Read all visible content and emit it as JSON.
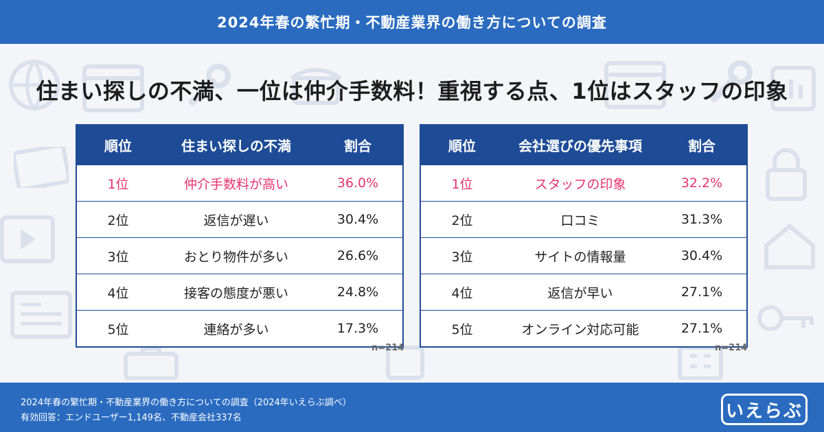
{
  "banner": {
    "title": "2024年春の繁忙期・不動産業界の働き方についての調査"
  },
  "headline": "住まい探しの不満、一位は仲介手数料！重視する点、1位はスタッフの印象",
  "tables": [
    {
      "headers": [
        "順位",
        "住まい探しの不満",
        "割合"
      ],
      "rows": [
        {
          "rank": "1位",
          "item": "仲介手数料が高い",
          "pct": "36.0%"
        },
        {
          "rank": "2位",
          "item": "返信が遅い",
          "pct": "30.4%"
        },
        {
          "rank": "3位",
          "item": "おとり物件が多い",
          "pct": "26.6%"
        },
        {
          "rank": "4位",
          "item": "接客の態度が悪い",
          "pct": "24.8%"
        },
        {
          "rank": "5位",
          "item": "連絡が多い",
          "pct": "17.3%"
        }
      ],
      "n": "n=214"
    },
    {
      "headers": [
        "順位",
        "会社選びの優先事項",
        "割合"
      ],
      "rows": [
        {
          "rank": "1位",
          "item": "スタッフの印象",
          "pct": "32.2%"
        },
        {
          "rank": "2位",
          "item": "口コミ",
          "pct": "31.3%"
        },
        {
          "rank": "3位",
          "item": "サイトの情報量",
          "pct": "30.4%"
        },
        {
          "rank": "4位",
          "item": "返信が早い",
          "pct": "27.1%"
        },
        {
          "rank": "5位",
          "item": "オンライン対応可能",
          "pct": "27.1%"
        }
      ],
      "n": "n=214"
    }
  ],
  "footer": {
    "source": "2024年春の繁忙期・不動産業界の働き方についての調査（2024年いえらぶ調べ）",
    "respondents": "有効回答：エンドユーザー1,149名、不動産会社337名",
    "logo": "いえらぶ"
  },
  "colors": {
    "brand": "#2a6bc0",
    "table": "#1e4b96",
    "highlight": "#e5336b"
  }
}
